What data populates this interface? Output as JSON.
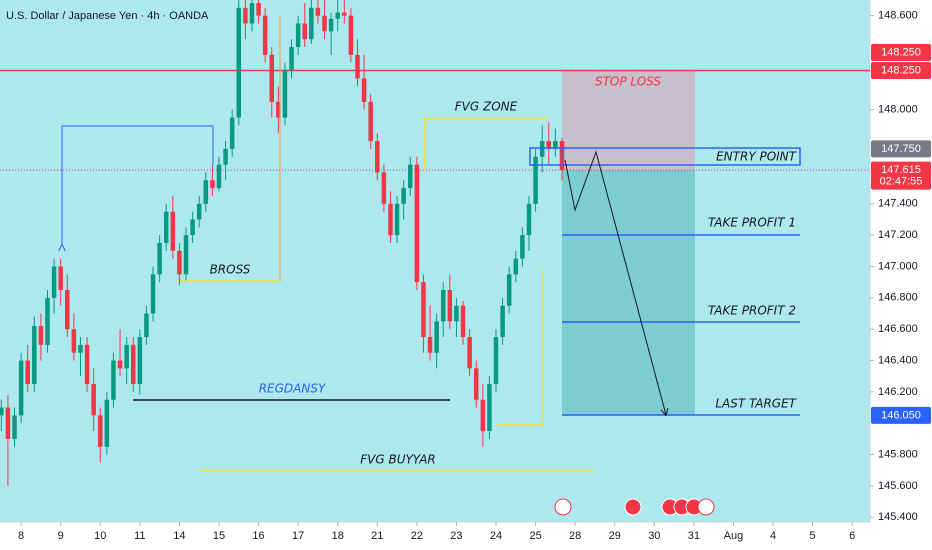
{
  "chart_data": {
    "type": "candlestick",
    "title": "U.S. Dollar / Japanese Yen · 4h · OANDA",
    "up_color": "#089981",
    "down_color": "#f23645",
    "ohlc": [
      [
        146.05,
        146.15,
        145.95,
        146.1
      ],
      [
        146.1,
        146.18,
        145.6,
        145.9
      ],
      [
        145.9,
        146.1,
        145.85,
        146.05
      ],
      [
        146.05,
        146.45,
        146.0,
        146.4
      ],
      [
        146.4,
        146.5,
        146.2,
        146.25
      ],
      [
        146.25,
        146.68,
        146.2,
        146.62
      ],
      [
        146.62,
        146.7,
        146.4,
        146.5
      ],
      [
        146.5,
        146.85,
        146.45,
        146.8
      ],
      [
        146.8,
        147.05,
        146.7,
        147.0
      ],
      [
        147.0,
        147.05,
        146.75,
        146.85
      ],
      [
        146.85,
        146.95,
        146.55,
        146.6
      ],
      [
        146.6,
        146.7,
        146.4,
        146.45
      ],
      [
        146.45,
        146.55,
        146.3,
        146.5
      ],
      [
        146.5,
        146.55,
        146.2,
        146.25
      ],
      [
        146.25,
        146.35,
        145.95,
        146.05
      ],
      [
        146.05,
        146.1,
        145.75,
        145.85
      ],
      [
        145.85,
        146.2,
        145.8,
        146.15
      ],
      [
        146.15,
        146.45,
        146.1,
        146.4
      ],
      [
        146.4,
        146.6,
        146.3,
        146.35
      ],
      [
        146.35,
        146.55,
        146.25,
        146.5
      ],
      [
        146.5,
        146.55,
        146.2,
        146.25
      ],
      [
        146.25,
        146.6,
        146.18,
        146.55
      ],
      [
        146.55,
        146.75,
        146.5,
        146.7
      ],
      [
        146.7,
        147.0,
        146.65,
        146.95
      ],
      [
        146.95,
        147.2,
        146.9,
        147.15
      ],
      [
        147.15,
        147.4,
        147.1,
        147.35
      ],
      [
        147.35,
        147.45,
        147.05,
        147.1
      ],
      [
        147.1,
        147.15,
        146.88,
        146.95
      ],
      [
        146.95,
        147.25,
        146.9,
        147.2
      ],
      [
        147.2,
        147.35,
        147.15,
        147.3
      ],
      [
        147.3,
        147.45,
        147.25,
        147.4
      ],
      [
        147.4,
        147.6,
        147.35,
        147.55
      ],
      [
        147.55,
        147.65,
        147.45,
        147.5
      ],
      [
        147.5,
        147.7,
        147.48,
        147.65
      ],
      [
        147.65,
        147.8,
        147.55,
        147.75
      ],
      [
        147.75,
        148.0,
        147.7,
        147.95
      ],
      [
        147.95,
        148.72,
        147.9,
        148.65
      ],
      [
        148.65,
        148.72,
        148.45,
        148.55
      ],
      [
        148.55,
        148.72,
        148.5,
        148.68
      ],
      [
        148.68,
        148.72,
        148.55,
        148.6
      ],
      [
        148.6,
        148.65,
        148.3,
        148.35
      ],
      [
        148.35,
        148.4,
        147.95,
        148.05
      ],
      [
        148.05,
        148.15,
        147.85,
        147.95
      ],
      [
        147.95,
        148.3,
        147.9,
        148.25
      ],
      [
        148.25,
        148.45,
        148.2,
        148.4
      ],
      [
        148.4,
        148.6,
        148.35,
        148.55
      ],
      [
        148.55,
        148.68,
        148.4,
        148.45
      ],
      [
        148.45,
        148.7,
        148.42,
        148.65
      ],
      [
        148.65,
        148.72,
        148.55,
        148.6
      ],
      [
        148.6,
        148.7,
        148.45,
        148.5
      ],
      [
        148.5,
        148.62,
        148.35,
        148.58
      ],
      [
        148.58,
        148.7,
        148.5,
        148.62
      ],
      [
        148.62,
        148.72,
        148.55,
        148.6
      ],
      [
        148.6,
        148.65,
        148.3,
        148.35
      ],
      [
        148.35,
        148.45,
        148.15,
        148.2
      ],
      [
        148.2,
        148.35,
        148.0,
        148.05
      ],
      [
        148.05,
        148.1,
        147.75,
        147.8
      ],
      [
        147.8,
        147.85,
        147.55,
        147.6
      ],
      [
        147.6,
        147.65,
        147.35,
        147.4
      ],
      [
        147.4,
        147.48,
        147.15,
        147.2
      ],
      [
        147.2,
        147.45,
        147.15,
        147.4
      ],
      [
        147.4,
        147.55,
        147.3,
        147.5
      ],
      [
        147.5,
        147.7,
        147.45,
        147.65
      ],
      [
        147.65,
        147.7,
        146.85,
        146.9
      ],
      [
        146.9,
        146.95,
        146.45,
        146.55
      ],
      [
        146.55,
        146.75,
        146.4,
        146.45
      ],
      [
        146.45,
        146.7,
        146.35,
        146.65
      ],
      [
        146.65,
        146.9,
        146.55,
        146.85
      ],
      [
        146.85,
        146.95,
        146.6,
        146.65
      ],
      [
        146.65,
        146.8,
        146.55,
        146.75
      ],
      [
        146.75,
        146.78,
        146.5,
        146.55
      ],
      [
        146.55,
        146.6,
        146.3,
        146.35
      ],
      [
        146.35,
        146.4,
        146.1,
        146.15
      ],
      [
        146.15,
        146.25,
        145.85,
        145.95
      ],
      [
        145.95,
        146.3,
        145.9,
        146.25
      ],
      [
        146.25,
        146.6,
        146.2,
        146.55
      ],
      [
        146.55,
        146.8,
        146.5,
        146.75
      ],
      [
        146.75,
        147.0,
        146.7,
        146.95
      ],
      [
        146.95,
        147.1,
        146.9,
        147.05
      ],
      [
        147.05,
        147.25,
        147.0,
        147.2
      ],
      [
        147.2,
        147.45,
        147.1,
        147.4
      ],
      [
        147.4,
        147.75,
        147.35,
        147.7
      ],
      [
        147.7,
        147.9,
        147.6,
        147.8
      ],
      [
        147.8,
        147.92,
        147.65,
        147.75
      ],
      [
        147.75,
        147.88,
        147.7,
        147.8
      ],
      [
        147.8,
        147.82,
        147.55,
        147.615
      ]
    ],
    "xlim": [
      -0.2,
      131.7
    ],
    "xticks": [
      {
        "value": 3,
        "label": "8"
      },
      {
        "value": 9,
        "label": "9"
      },
      {
        "value": 15,
        "label": "10"
      },
      {
        "value": 21,
        "label": "11"
      },
      {
        "value": 27,
        "label": "14"
      },
      {
        "value": 33,
        "label": "15"
      },
      {
        "value": 39,
        "label": "16"
      },
      {
        "value": 45,
        "label": "17"
      },
      {
        "value": 51,
        "label": "18"
      },
      {
        "value": 57,
        "label": "21"
      },
      {
        "value": 63,
        "label": "22"
      },
      {
        "value": 69,
        "label": "23"
      },
      {
        "value": 75,
        "label": "24"
      },
      {
        "value": 81,
        "label": "25"
      },
      {
        "value": 87,
        "label": "28"
      },
      {
        "value": 93,
        "label": "29"
      },
      {
        "value": 99,
        "label": "30"
      },
      {
        "value": 105,
        "label": "31"
      },
      {
        "value": 111,
        "label": "Aug"
      },
      {
        "value": 117,
        "label": "4"
      },
      {
        "value": 123,
        "label": "5"
      },
      {
        "value": 129,
        "label": "6"
      }
    ],
    "ylim": [
      145.37,
      148.7
    ],
    "yticks": [
      {
        "value": 145.4,
        "label": "145.400"
      },
      {
        "value": 145.6,
        "label": "145.600"
      },
      {
        "value": 145.8,
        "label": "145.800"
      },
      {
        "value": 146.2,
        "label": "146.200"
      },
      {
        "value": 146.4,
        "label": "146.400"
      },
      {
        "value": 146.6,
        "label": "146.600"
      },
      {
        "value": 146.8,
        "label": "146.800"
      },
      {
        "value": 147.0,
        "label": "147.000"
      },
      {
        "value": 147.2,
        "label": "147.200"
      },
      {
        "value": 147.4,
        "label": "147.400"
      },
      {
        "value": 148.0,
        "label": "148.000"
      },
      {
        "value": 148.6,
        "label": "148.600"
      }
    ],
    "price_badges": [
      {
        "value": 148.25,
        "label": "148.250",
        "color": "#f23645"
      },
      {
        "value": 148.25,
        "label": "148.250",
        "color": "#f23645"
      },
      {
        "value": 147.75,
        "label": "147.750",
        "color": "#787b86"
      },
      {
        "value": 147.615,
        "label": "147.615",
        "countdown": "02:47:55",
        "color": "#f23645"
      },
      {
        "value": 146.05,
        "label": "146.050",
        "color": "#2962ff"
      }
    ],
    "annotations": {
      "stop_loss": "STOP LOSS",
      "entry_point": "ENTRY POINT",
      "take_profit_1": "TAKE PROFIT 1",
      "take_profit_2": "TAKE PROFIT 2",
      "last_target": "LAST TARGET",
      "fvg_zone": "FVG ZONE",
      "bross": "BROSS",
      "regdansy": "REGDANSY",
      "fvg_buyyar": "FVG BUYYAR"
    }
  }
}
